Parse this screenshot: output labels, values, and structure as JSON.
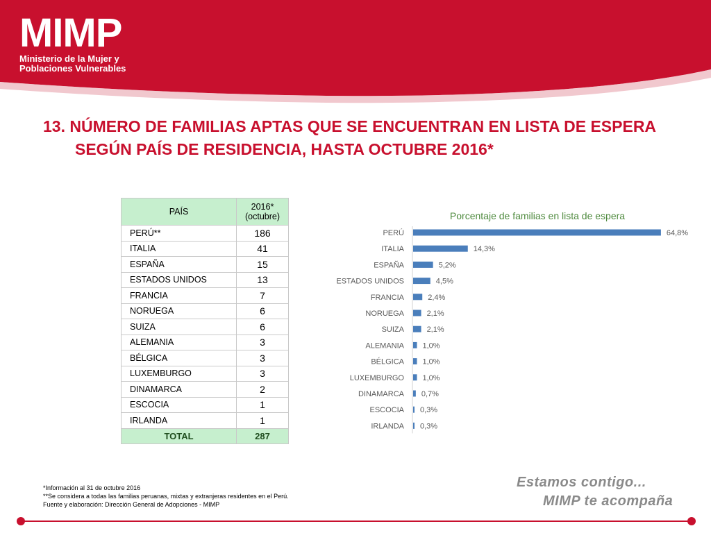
{
  "header": {
    "logo_text": "MIMP",
    "logo_sub1": "Ministerio de la Mujer y",
    "logo_sub2": "Poblaciones Vulnerables"
  },
  "title": {
    "line1": "13. NÚMERO DE FAMILIAS APTAS QUE SE ENCUENTRAN EN LISTA DE ESPERA",
    "line2": "SEGÚN PAÍS DE RESIDENCIA, HASTA OCTUBRE 2016*"
  },
  "table": {
    "header_country": "PAÍS",
    "header_value_1": "2016*",
    "header_value_2": "(octubre)",
    "rows": [
      {
        "country": "PERÚ**",
        "value": "186"
      },
      {
        "country": "ITALIA",
        "value": "41"
      },
      {
        "country": "ESPAÑA",
        "value": "15"
      },
      {
        "country": "ESTADOS UNIDOS",
        "value": "13"
      },
      {
        "country": "FRANCIA",
        "value": "7"
      },
      {
        "country": "NORUEGA",
        "value": "6"
      },
      {
        "country": "SUIZA",
        "value": "6"
      },
      {
        "country": "ALEMANIA",
        "value": "3"
      },
      {
        "country": "BÉLGICA",
        "value": "3"
      },
      {
        "country": "LUXEMBURGO",
        "value": "3"
      },
      {
        "country": "DINAMARCA",
        "value": "2"
      },
      {
        "country": "ESCOCIA",
        "value": "1"
      },
      {
        "country": "IRLANDA",
        "value": "1"
      }
    ],
    "total_label": "TOTAL",
    "total_value": "287"
  },
  "chart_data": {
    "type": "bar",
    "orientation": "horizontal",
    "title": "Porcentaje de familias en lista de espera",
    "categories": [
      "PERÚ",
      "ITALIA",
      "ESPAÑA",
      "ESTADOS UNIDOS",
      "FRANCIA",
      "NORUEGA",
      "SUIZA",
      "ALEMANIA",
      "BÉLGICA",
      "LUXEMBURGO",
      "DINAMARCA",
      "ESCOCIA",
      "IRLANDA"
    ],
    "values": [
      64.8,
      14.3,
      5.2,
      4.5,
      2.4,
      2.1,
      2.1,
      1.0,
      1.0,
      1.0,
      0.7,
      0.3,
      0.3
    ],
    "labels": [
      "64,8%",
      "14,3%",
      "5,2%",
      "4,5%",
      "2,4%",
      "2,1%",
      "2,1%",
      "1,0%",
      "1,0%",
      "1,0%",
      "0,7%",
      "0,3%",
      "0,3%"
    ],
    "xlim": [
      0,
      65
    ],
    "grid": false,
    "legend": "none",
    "bar_color": "#4a7ebb",
    "title_color": "#4e8a3e"
  },
  "notes": {
    "line1": "*Información al 31 de octubre 2016",
    "line2": "**Se considera a todas las familias peruanas, mixtas y extranjeras residentes en el Perú.",
    "line3": "Fuente y elaboración: Dirección General de Adopciones - MIMP"
  },
  "slogan": {
    "line1": "Estamos contigo...",
    "line2": "MIMP te acompaña"
  },
  "colors": {
    "brand_red": "#c8102e",
    "table_header_green": "#c6efce"
  }
}
